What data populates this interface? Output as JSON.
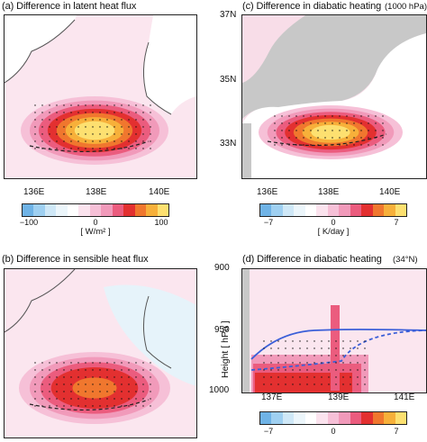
{
  "panels": {
    "a": {
      "title": "(a) Difference in latent heat flux",
      "xticks": [
        "136E",
        "138E",
        "140E"
      ]
    },
    "b": {
      "title": "(b) Difference in sensible heat flux"
    },
    "c": {
      "title": "(c) Difference in diabatic heating",
      "level": "(1000 hPa)",
      "xticks": [
        "136E",
        "138E",
        "140E"
      ],
      "yticks": [
        "37N",
        "35N",
        "33N"
      ]
    },
    "d": {
      "title": "(d) Difference in diabatic heating",
      "lat": "(34°N)",
      "ylabel": "Height  [ hPa ]",
      "yticks": [
        "900",
        "950",
        "1000"
      ],
      "xticks": [
        "137E",
        "139E",
        "141E"
      ]
    }
  },
  "colorbars": {
    "a": {
      "labels": [
        "−100",
        "0",
        "100"
      ],
      "unit": "[ W/m² ]"
    },
    "c": {
      "labels": [
        "−7",
        "0",
        "7"
      ],
      "unit": "[ K/day ]"
    },
    "d": {
      "labels": [
        "−7",
        "0",
        "7"
      ]
    }
  },
  "colors": {
    "scale": [
      "#6fb3e6",
      "#9fd0f1",
      "#cfe8f7",
      "#ecf6fb",
      "#ffffff",
      "#fbe3ee",
      "#f6c0d7",
      "#f19aba",
      "#eb5c7e",
      "#e33030",
      "#f0772e",
      "#f7b03a",
      "#fde070"
    ],
    "land": "#c8c8c8"
  },
  "chart_data": [
    {
      "type": "heatmap",
      "panel": "a",
      "title": "(a) Difference in latent heat flux",
      "x_axis_ticks": [
        "136E",
        "138E",
        "140E"
      ],
      "colorbar_range": [
        -100,
        100
      ],
      "unit": "W/m²"
    },
    {
      "type": "heatmap",
      "panel": "b",
      "title": "(b) Difference in sensible heat flux"
    },
    {
      "type": "heatmap",
      "panel": "c",
      "title": "(c) Difference in diabatic heating",
      "level": "1000 hPa",
      "x_axis_ticks": [
        "136E",
        "138E",
        "140E"
      ],
      "y_axis_ticks": [
        "37N",
        "35N",
        "33N"
      ],
      "colorbar_range": [
        -7,
        7
      ],
      "unit": "K/day"
    },
    {
      "type": "heatmap",
      "panel": "d",
      "title": "(d) Difference in diabatic heating",
      "latitude": "34°N",
      "x_axis_ticks": [
        "137E",
        "139E",
        "141E"
      ],
      "y_axis_ticks": [
        900,
        950,
        1000
      ],
      "ylabel": "Height [ hPa ]",
      "colorbar_range": [
        -7,
        7
      ]
    }
  ]
}
